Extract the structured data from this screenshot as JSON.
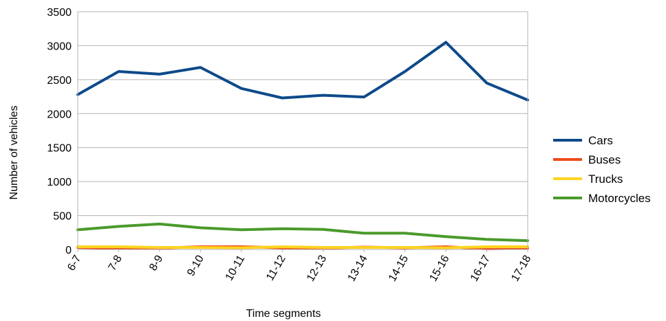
{
  "chart_data": {
    "type": "line",
    "title": "",
    "xlabel": "Time segments",
    "ylabel": "Number of vehicles",
    "categories": [
      "6-7",
      "7-8",
      "8-9",
      "9-10",
      "10-11",
      "11-12",
      "12-13",
      "13-14",
      "14-15",
      "15-16",
      "16-17",
      "17-18"
    ],
    "ylim": [
      0,
      3500
    ],
    "yticks": [
      "0",
      "500",
      "1000",
      "1500",
      "2000",
      "2500",
      "3000",
      "3500"
    ],
    "grid": "horizontal",
    "legend_position": "right",
    "series": [
      {
        "name": "Cars",
        "color": "#0d4a8a",
        "values": [
          2280,
          2620,
          2580,
          2680,
          2370,
          2230,
          2270,
          2245,
          2620,
          3050,
          2450,
          2200
        ]
      },
      {
        "name": "Buses",
        "color": "#ef4a1b",
        "values": [
          30,
          20,
          20,
          40,
          40,
          25,
          20,
          35,
          25,
          40,
          10,
          20
        ]
      },
      {
        "name": "Trucks",
        "color": "#ffd320",
        "values": [
          40,
          40,
          30,
          30,
          25,
          40,
          30,
          30,
          30,
          25,
          40,
          40
        ]
      },
      {
        "name": "Motorcycles",
        "color": "#4a9a2b",
        "values": [
          290,
          340,
          375,
          320,
          290,
          305,
          295,
          240,
          240,
          190,
          150,
          130
        ]
      }
    ]
  }
}
